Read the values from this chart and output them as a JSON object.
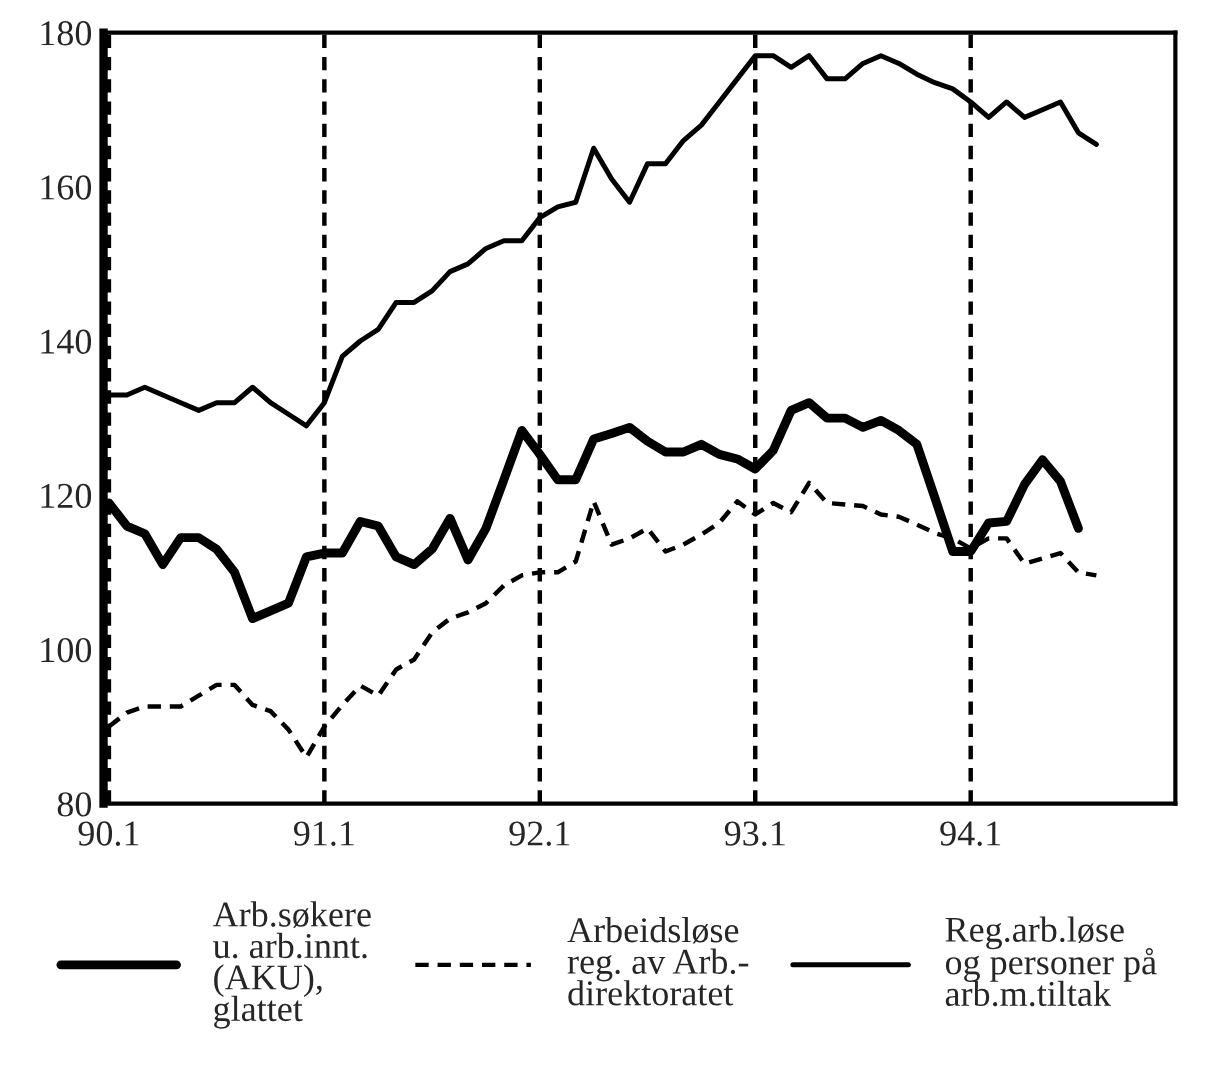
{
  "chart_data": {
    "type": "line",
    "categories": [
      "90.1",
      null,
      null,
      null,
      null,
      null,
      null,
      null,
      null,
      null,
      null,
      null,
      "91.1",
      null,
      null,
      null,
      null,
      null,
      null,
      null,
      null,
      null,
      null,
      null,
      "92.1",
      null,
      null,
      null,
      null,
      null,
      null,
      null,
      null,
      null,
      null,
      null,
      "93.1",
      null,
      null,
      null,
      null,
      null,
      null,
      null,
      null,
      null,
      null,
      null,
      "94.1",
      null,
      null,
      null,
      null,
      null,
      null,
      null,
      null,
      null,
      null,
      null
    ],
    "series": [
      {
        "name": "Arb.søkere\nu. arb.innt.\n(AKU),\nglattet",
        "color": "#000000",
        "line_style": "solid",
        "values": [
          119,
          116,
          115,
          111,
          114.5,
          114.5,
          113,
          110,
          104,
          105,
          106,
          112,
          112.5,
          112.5,
          116.6,
          116,
          112,
          111,
          113,
          117,
          111.6,
          115.7,
          122,
          128.4,
          125.3,
          122,
          122,
          127.3,
          128,
          128.8,
          127,
          125.6,
          125.6,
          126.6,
          125.3,
          124.7,
          123.4,
          125.8,
          131,
          132,
          130,
          130,
          128.8,
          129.7,
          128.4,
          126.6,
          119.7,
          112.7,
          112.7,
          116.4,
          116.6,
          121.4,
          124.6,
          121.8,
          115.7,
          null,
          null,
          null,
          null,
          null
        ]
      },
      {
        "name": "Arbeidsløse\nreg. av Arb.-\ndirektoratet",
        "color": "#000000",
        "line_style": "dashed",
        "values": [
          90,
          91.8,
          92.6,
          92.6,
          92.6,
          94,
          95.4,
          95.4,
          92.8,
          92,
          89.6,
          86,
          90,
          92.8,
          95.3,
          94,
          97.4,
          98.7,
          102.2,
          104,
          104.8,
          106,
          108.3,
          109.6,
          110,
          110,
          111.4,
          119.2,
          113.6,
          114.4,
          115.7,
          112.7,
          113.6,
          114.9,
          116.4,
          119.2,
          117.5,
          119,
          117.8,
          121.6,
          119,
          118.8,
          118.6,
          117.5,
          117.2,
          116.2,
          115.1,
          114.4,
          113.1,
          114.4,
          114.4,
          111.1,
          111.8,
          112.5,
          110,
          109.6,
          null,
          null,
          null,
          null
        ]
      },
      {
        "name": "Reg.arb.løse\nog personer på\narb.m.tiltak",
        "color": "#000000",
        "line_style": "solid",
        "values": [
          133,
          133,
          134,
          133,
          132,
          131,
          132,
          132,
          134,
          132,
          130.5,
          129,
          132,
          138,
          140,
          141.5,
          145,
          145,
          146.5,
          149,
          150,
          152,
          153,
          153,
          156,
          157.4,
          158,
          165,
          161,
          158,
          163,
          163,
          166,
          168,
          171,
          174,
          177,
          177,
          175.5,
          177,
          174,
          174,
          176,
          177,
          176,
          174.6,
          173.5,
          172.7,
          171,
          169,
          171,
          169,
          170,
          171,
          167,
          165.5,
          null,
          null,
          null,
          null
        ]
      }
    ],
    "ylim": [
      80,
      180
    ],
    "yticks": [
      80,
      100,
      120,
      140,
      160,
      180
    ],
    "grid": "x",
    "legend": "bottom",
    "marker": "none"
  }
}
